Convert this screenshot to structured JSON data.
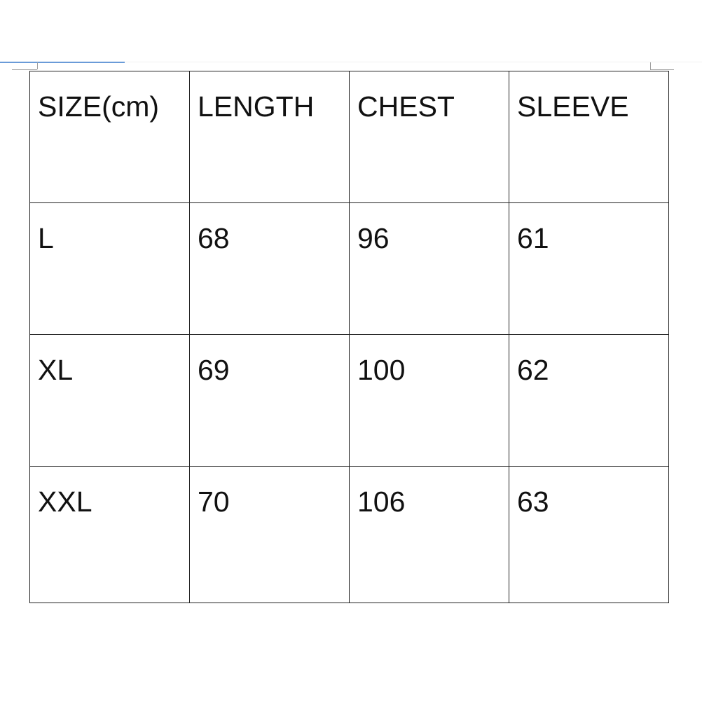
{
  "table": {
    "headers": [
      "SIZE(cm)",
      "LENGTH",
      "CHEST",
      "SLEEVE"
    ],
    "rows": [
      [
        "L",
        "68",
        "96",
        "61"
      ],
      [
        "XL",
        "69",
        "100",
        "62"
      ],
      [
        "XXL",
        "70",
        "106",
        "63"
      ]
    ]
  }
}
